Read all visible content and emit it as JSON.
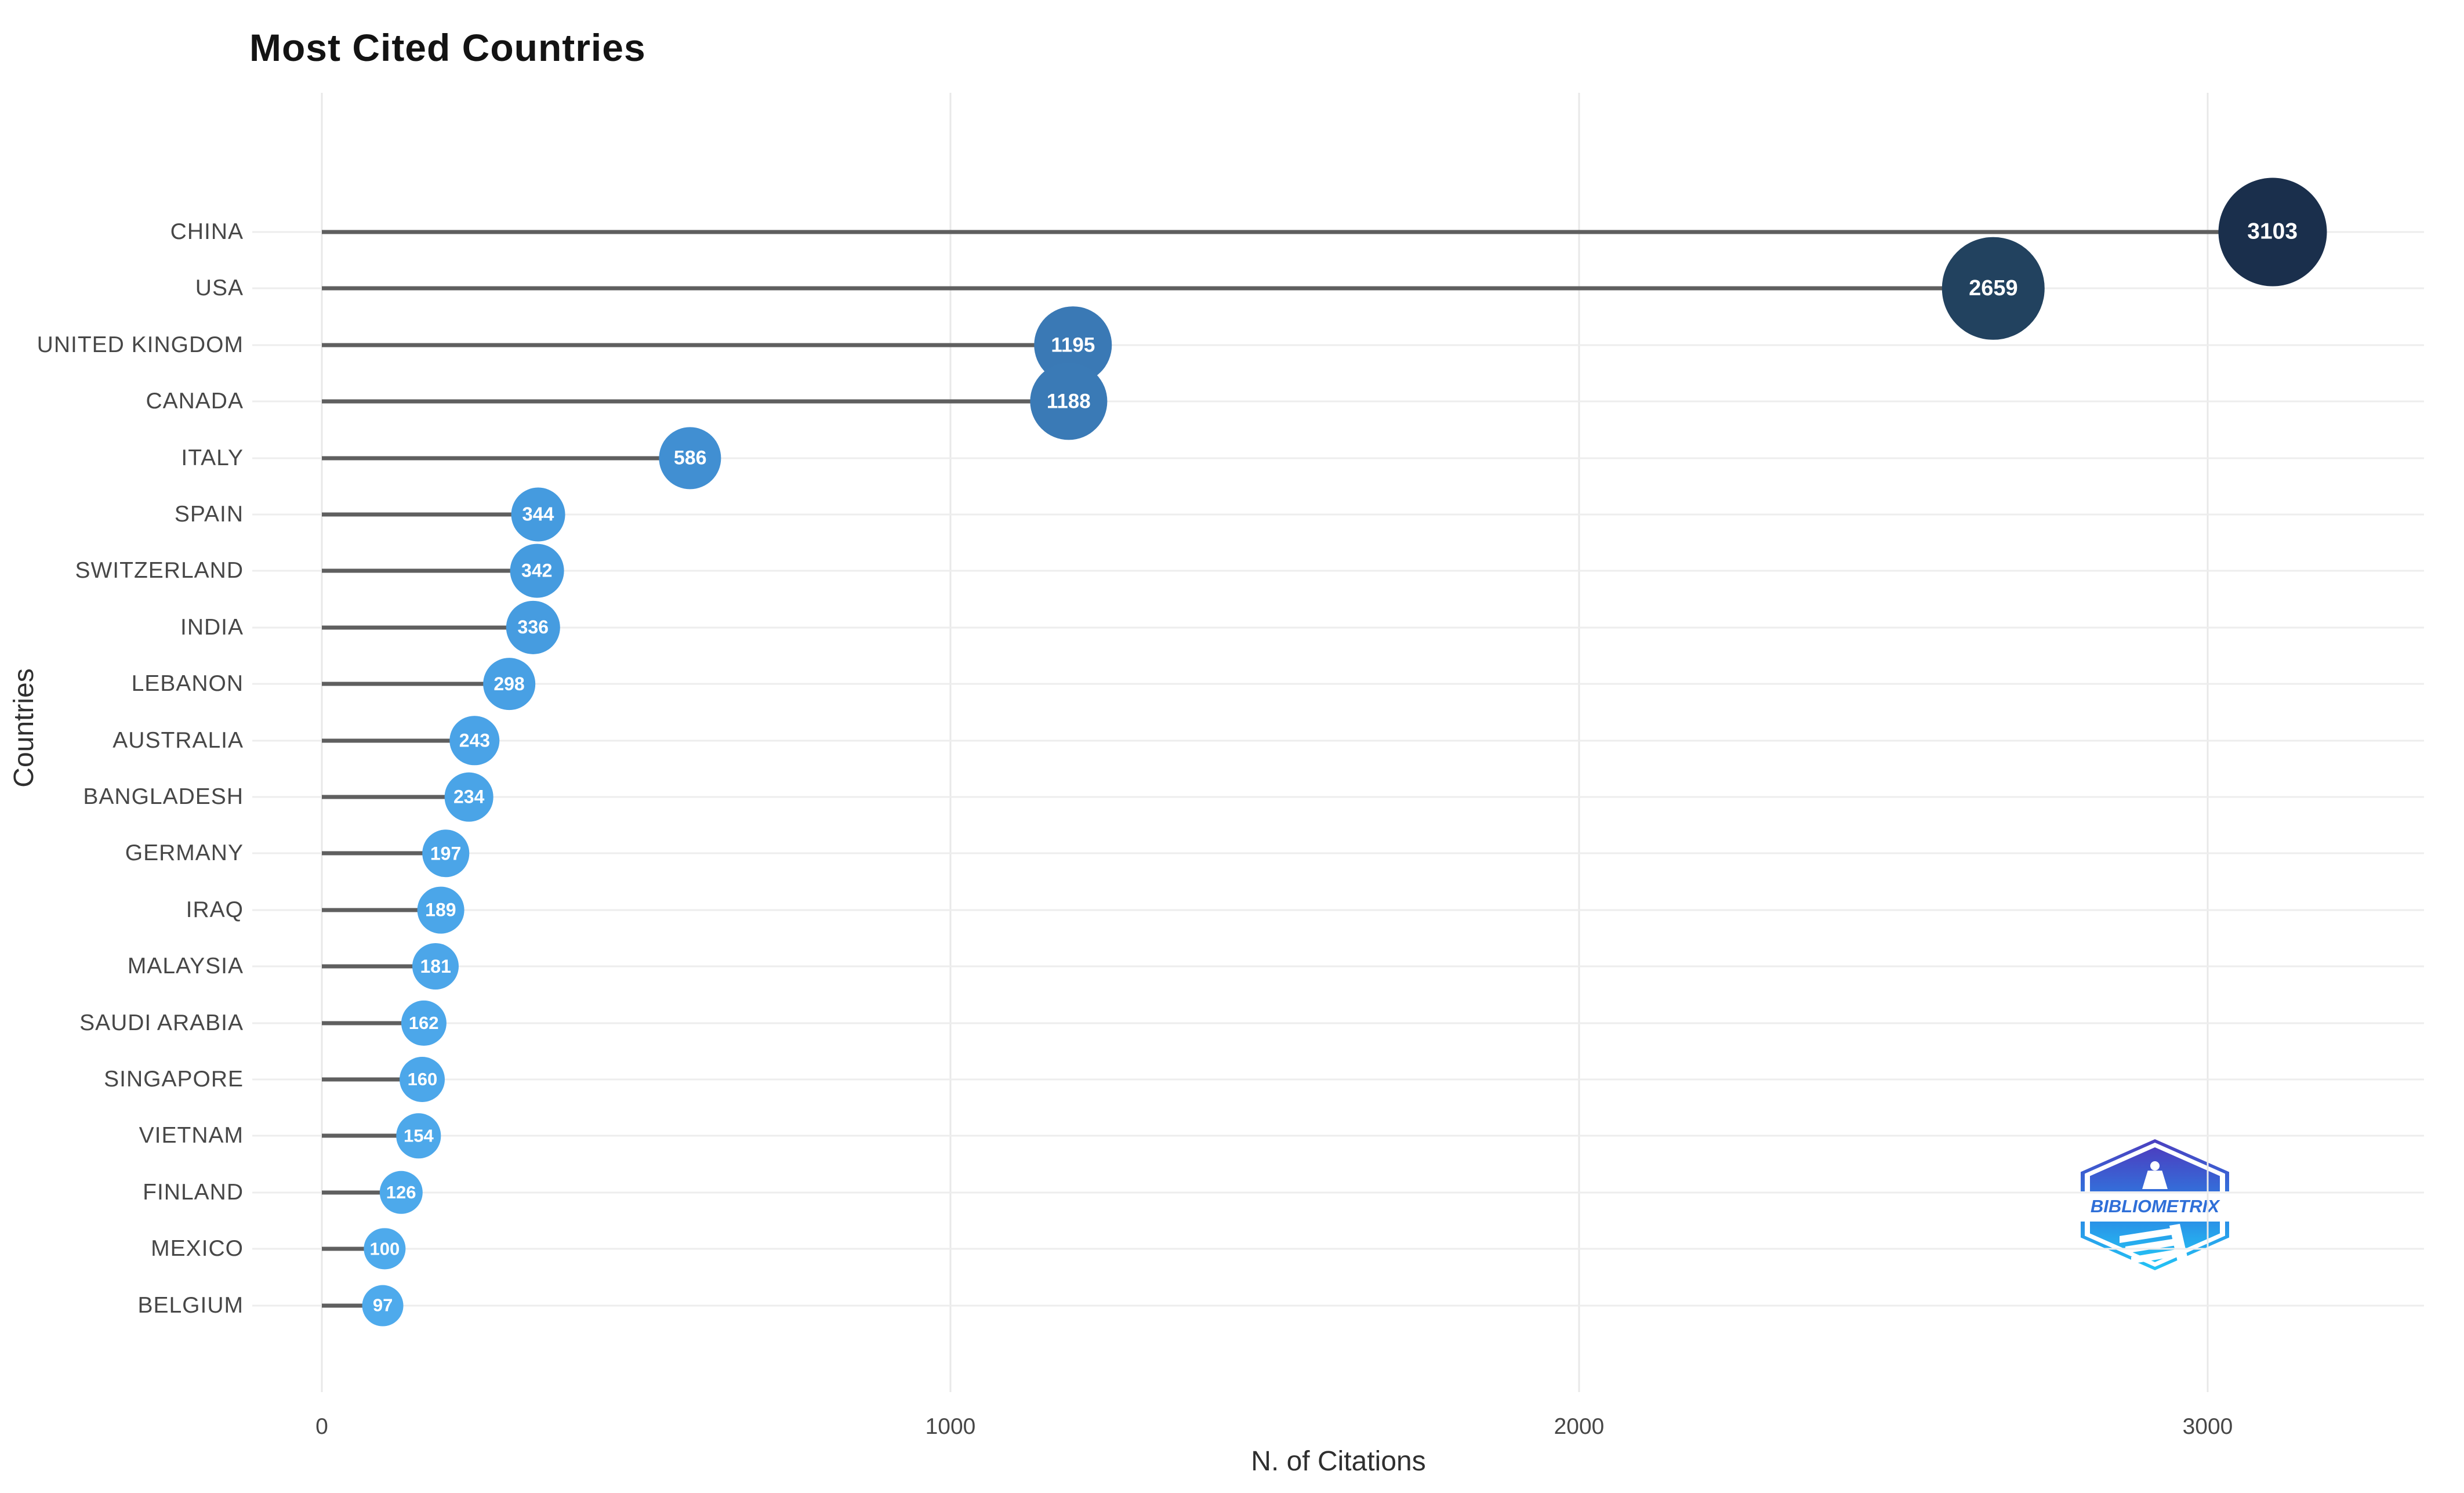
{
  "page": {
    "background": "#ffffff"
  },
  "chart": {
    "title": "Most Cited Countries",
    "xlabel": "N. of Citations",
    "ylabel": "Countries"
  },
  "chart_data": {
    "type": "scatter",
    "subtype": "horizontal-lollipop",
    "title": "Most Cited Countries",
    "xlabel": "N. of Citations",
    "ylabel": "Countries",
    "categories": [
      "CHINA",
      "USA",
      "UNITED KINGDOM",
      "CANADA",
      "ITALY",
      "SPAIN",
      "SWITZERLAND",
      "INDIA",
      "LEBANON",
      "AUSTRALIA",
      "BANGLADESH",
      "GERMANY",
      "IRAQ",
      "MALAYSIA",
      "SAUDI ARABIA",
      "SINGAPORE",
      "VIETNAM",
      "FINLAND",
      "MEXICO",
      "BELGIUM"
    ],
    "values": [
      3103,
      2659,
      1195,
      1188,
      586,
      344,
      342,
      336,
      298,
      243,
      234,
      197,
      189,
      181,
      162,
      160,
      154,
      126,
      100,
      97
    ],
    "point_colors": [
      "#1a2f4c",
      "#22425f",
      "#3a79b5",
      "#3a7ab6",
      "#418fd2",
      "#459bdf",
      "#459bdf",
      "#469ce0",
      "#48a0e4",
      "#4aa3e7",
      "#4aa4e7",
      "#4ba5e8",
      "#4ba6e9",
      "#4ca6e9",
      "#4ca7ea",
      "#4ca7ea",
      "#4da8ea",
      "#4da9eb",
      "#4eaaec",
      "#4eaaec"
    ],
    "xticks": [
      0,
      1000,
      2000,
      3000
    ],
    "xlim": [
      -110,
      3345
    ],
    "grid": true,
    "legend": false,
    "stem_color": "#5f5f5f",
    "gridline_color": "#e8e8e8",
    "row_line_color": "#ededed",
    "tick_label_color": "#474747",
    "axis_title_color": "#2f2f2f",
    "title_color": "#131313",
    "value_label_color": "#ffffff"
  },
  "logo": {
    "text": "BIBLIOMETRIX",
    "text_color": "#2f6fd8",
    "gradient_top": "#4b3fc0",
    "gradient_mid": "#2e7ae0",
    "gradient_bottom": "#22c4f5"
  }
}
